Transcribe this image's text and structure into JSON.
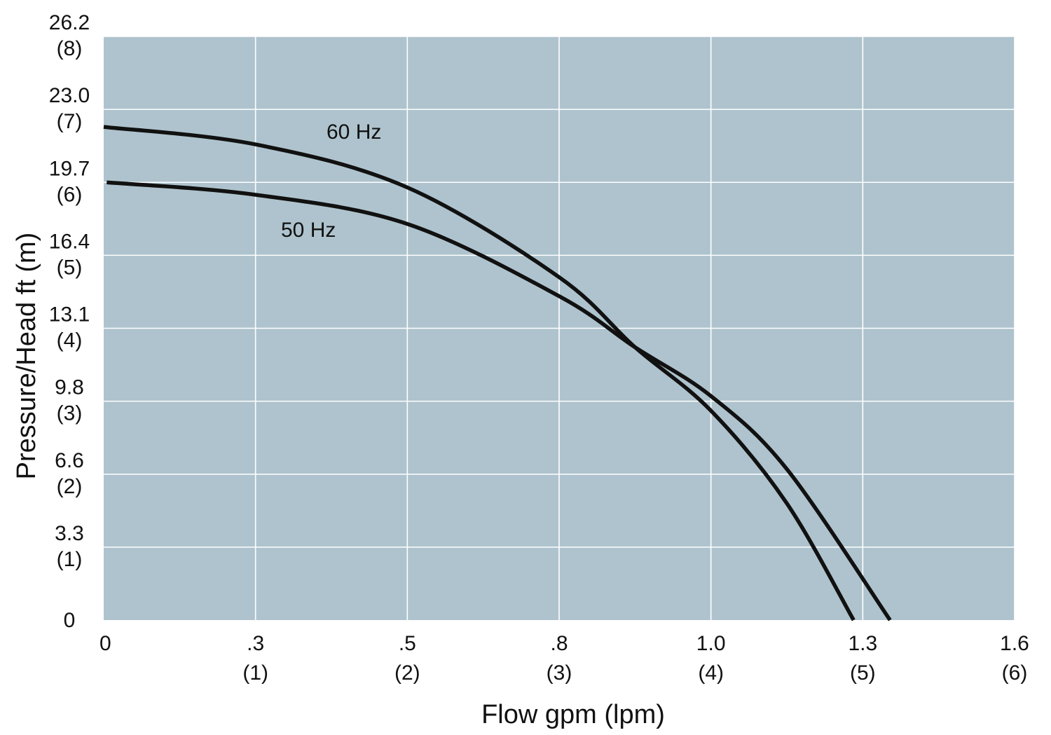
{
  "chart_data": {
    "type": "line",
    "xlabel": "Flow gpm (lpm)",
    "ylabel": "Pressure/Head ft (m)",
    "xlim": [
      0,
      6
    ],
    "ylim": [
      0,
      8
    ],
    "grid": true,
    "background_color": "#aec3cd",
    "line_color": "#111111",
    "x_ticks": [
      {
        "value": 0,
        "label": "0",
        "sublabel": ""
      },
      {
        "value": 1,
        "label": ".3",
        "sublabel": "(1)"
      },
      {
        "value": 2,
        "label": ".5",
        "sublabel": "(2)"
      },
      {
        "value": 3,
        "label": ".8",
        "sublabel": "(3)"
      },
      {
        "value": 4,
        "label": "1.0",
        "sublabel": "(4)"
      },
      {
        "value": 5,
        "label": "1.3",
        "sublabel": "(5)"
      },
      {
        "value": 6,
        "label": "1.6",
        "sublabel": "(6)"
      }
    ],
    "y_ticks": [
      {
        "value": 0,
        "label": "0",
        "sublabel": ""
      },
      {
        "value": 1,
        "label": "3.3",
        "sublabel": "(1)"
      },
      {
        "value": 2,
        "label": "6.6",
        "sublabel": "(2)"
      },
      {
        "value": 3,
        "label": "9.8",
        "sublabel": "(3)"
      },
      {
        "value": 4,
        "label": "13.1",
        "sublabel": "(4)"
      },
      {
        "value": 5,
        "label": "16.4",
        "sublabel": "(5)"
      },
      {
        "value": 6,
        "label": "19.7",
        "sublabel": "(6)"
      },
      {
        "value": 7,
        "label": "23.0",
        "sublabel": "(7)"
      },
      {
        "value": 8,
        "label": "26.2",
        "sublabel": "(8)"
      }
    ],
    "series": [
      {
        "name": "60 Hz",
        "x": [
          0,
          1,
          2,
          3,
          3.5,
          4,
          4.5,
          4.94
        ],
        "y": [
          6.76,
          6.52,
          5.93,
          4.7,
          3.74,
          2.87,
          1.6,
          0
        ]
      },
      {
        "name": "50 Hz",
        "x": [
          0.02,
          1,
          2,
          3,
          3.5,
          4,
          4.5,
          5.18
        ],
        "y": [
          6.0,
          5.83,
          5.43,
          4.44,
          3.74,
          3.07,
          2.07,
          0
        ]
      }
    ]
  }
}
